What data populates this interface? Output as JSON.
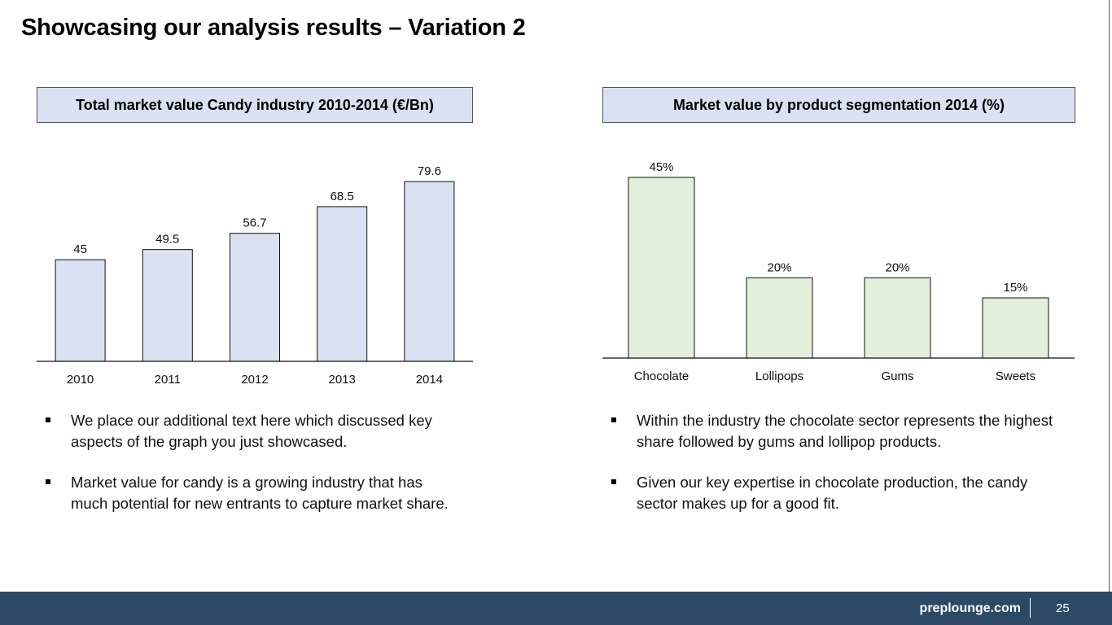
{
  "slide": {
    "title": "Showcasing our analysis results – Variation 2",
    "footer_brand": "preplounge.com",
    "page_number": "25"
  },
  "left": {
    "bullets": [
      "We place our additional text here which discussed key aspects of the graph you just showcased.",
      "Market value for candy is a growing industry that has much potential for new entrants to capture market share."
    ]
  },
  "right": {
    "bullets": [
      "Within the industry the chocolate sector represents the highest share followed by gums and lollipop products.",
      "Given our key expertise in chocolate production, the candy sector makes up for a good fit."
    ]
  },
  "colors": {
    "bar_blue": "#d9e1f2",
    "bar_green": "#e2efda",
    "header_fill": "#d9e1f2",
    "footer": "#2c4a66"
  },
  "chart_data": [
    {
      "type": "bar",
      "title": "Total market value Candy industry 2010-2014 (€/Bn)",
      "categories": [
        "2010",
        "2011",
        "2012",
        "2013",
        "2014"
      ],
      "values": [
        45,
        49.5,
        56.7,
        68.5,
        79.6
      ],
      "value_labels": [
        "45",
        "49.5",
        "56.7",
        "68.5",
        "79.6"
      ],
      "ylim": [
        0,
        80
      ],
      "grid": false
    },
    {
      "type": "bar",
      "title": "Market value by product segmentation 2014 (%)",
      "categories": [
        "Chocolate",
        "Lollipops",
        "Gums",
        "Sweets"
      ],
      "values": [
        45,
        20,
        20,
        15
      ],
      "value_labels": [
        "45%",
        "20%",
        "20%",
        "15%"
      ],
      "ylim": [
        0,
        45
      ],
      "grid": false
    }
  ]
}
